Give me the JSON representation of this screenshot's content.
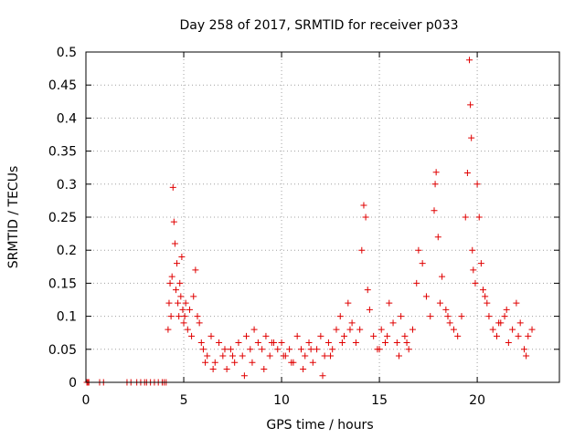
{
  "chart_data": {
    "type": "scatter",
    "title": "Day 258 of 2017, SRMTID for receiver p033",
    "xlabel": "GPS time / hours",
    "ylabel": "SRMTID / TECUs",
    "xlim": [
      0,
      24.2
    ],
    "ylim": [
      0,
      0.5
    ],
    "xticks": [
      0,
      5,
      10,
      15,
      20
    ],
    "xtick_labels": [
      "0",
      "5",
      "10",
      "15",
      "20"
    ],
    "yticks": [
      0,
      0.05,
      0.1,
      0.15,
      0.2,
      0.25,
      0.3,
      0.35,
      0.4,
      0.45,
      0.5
    ],
    "ytick_labels": [
      "0",
      "0.05",
      "0.1",
      "0.15",
      "0.2",
      "0.25",
      "0.3",
      "0.35",
      "0.4",
      "0.45",
      "0.5"
    ],
    "grid": true,
    "marker": "+",
    "color": "#e00000",
    "series": [
      {
        "name": "SRMTID",
        "x": [
          0.05,
          0.1,
          0.15,
          0.7,
          0.9,
          2.1,
          2.3,
          2.6,
          2.8,
          3.0,
          3.1,
          3.3,
          3.5,
          3.7,
          3.9,
          4.0,
          4.1,
          4.2,
          4.25,
          4.3,
          4.35,
          4.4,
          4.45,
          4.5,
          4.55,
          4.6,
          4.65,
          4.7,
          4.75,
          4.8,
          4.85,
          4.9,
          4.95,
          5.0,
          5.05,
          5.1,
          5.2,
          5.3,
          5.4,
          5.5,
          5.6,
          5.7,
          5.8,
          5.9,
          6.0,
          6.2,
          6.4,
          6.6,
          6.8,
          7.0,
          7.2,
          7.4,
          7.6,
          7.8,
          8.0,
          8.2,
          8.4,
          8.6,
          8.8,
          9.0,
          9.2,
          9.4,
          9.6,
          9.8,
          10.0,
          10.2,
          10.4,
          10.6,
          10.8,
          11.0,
          11.2,
          11.4,
          11.6,
          11.8,
          12.0,
          12.2,
          12.4,
          12.6,
          12.8,
          13.0,
          13.2,
          13.4,
          13.6,
          13.8,
          14.0,
          14.1,
          14.2,
          14.3,
          14.4,
          14.5,
          14.7,
          14.9,
          15.1,
          15.3,
          15.5,
          15.7,
          15.9,
          16.1,
          16.3,
          16.5,
          16.7,
          16.9,
          17.0,
          17.2,
          17.4,
          17.6,
          17.8,
          17.85,
          17.9,
          18.0,
          18.2,
          18.4,
          18.6,
          18.8,
          19.0,
          19.2,
          19.4,
          19.5,
          19.6,
          19.65,
          19.7,
          19.75,
          19.8,
          19.9,
          20.0,
          20.1,
          20.2,
          20.3,
          20.4,
          20.5,
          20.6,
          20.8,
          21.0,
          21.2,
          21.4,
          21.6,
          21.8,
          22.0,
          22.2,
          22.4,
          22.6,
          22.8,
          6.1,
          6.5,
          7.1,
          7.5,
          8.1,
          8.5,
          9.1,
          9.5,
          10.1,
          10.5,
          11.1,
          11.5,
          12.1,
          12.5,
          13.1,
          13.5,
          15.0,
          15.4,
          16.0,
          16.4,
          18.1,
          18.5,
          21.1,
          21.5,
          22.1,
          22.5
        ],
        "y": [
          0,
          0,
          0,
          0,
          0,
          0,
          0,
          0,
          0,
          0,
          0,
          0,
          0,
          0,
          0,
          0,
          0,
          0.08,
          0.12,
          0.15,
          0.1,
          0.16,
          0.295,
          0.243,
          0.21,
          0.14,
          0.18,
          0.12,
          0.1,
          0.15,
          0.13,
          0.19,
          0.11,
          0.09,
          0.1,
          0.12,
          0.08,
          0.11,
          0.07,
          0.13,
          0.17,
          0.1,
          0.09,
          0.06,
          0.05,
          0.04,
          0.07,
          0.03,
          0.06,
          0.04,
          0.02,
          0.05,
          0.03,
          0.06,
          0.04,
          0.07,
          0.05,
          0.08,
          0.06,
          0.05,
          0.07,
          0.04,
          0.06,
          0.05,
          0.06,
          0.04,
          0.05,
          0.03,
          0.07,
          0.05,
          0.04,
          0.06,
          0.03,
          0.05,
          0.07,
          0.04,
          0.06,
          0.05,
          0.08,
          0.1,
          0.07,
          0.12,
          0.09,
          0.06,
          0.08,
          0.2,
          0.268,
          0.25,
          0.14,
          0.11,
          0.07,
          0.05,
          0.08,
          0.06,
          0.12,
          0.09,
          0.06,
          0.1,
          0.07,
          0.05,
          0.08,
          0.15,
          0.2,
          0.18,
          0.13,
          0.1,
          0.26,
          0.3,
          0.318,
          0.22,
          0.16,
          0.11,
          0.09,
          0.08,
          0.07,
          0.1,
          0.25,
          0.317,
          0.488,
          0.42,
          0.37,
          0.2,
          0.17,
          0.15,
          0.3,
          0.25,
          0.18,
          0.14,
          0.13,
          0.12,
          0.1,
          0.08,
          0.07,
          0.09,
          0.1,
          0.06,
          0.08,
          0.12,
          0.09,
          0.05,
          0.07,
          0.08,
          0.03,
          0.02,
          0.05,
          0.04,
          0.01,
          0.03,
          0.02,
          0.06,
          0.04,
          0.03,
          0.02,
          0.05,
          0.01,
          0.04,
          0.06,
          0.08,
          0.05,
          0.07,
          0.04,
          0.06,
          0.12,
          0.1,
          0.09,
          0.11,
          0.07,
          0.04
        ]
      }
    ]
  }
}
